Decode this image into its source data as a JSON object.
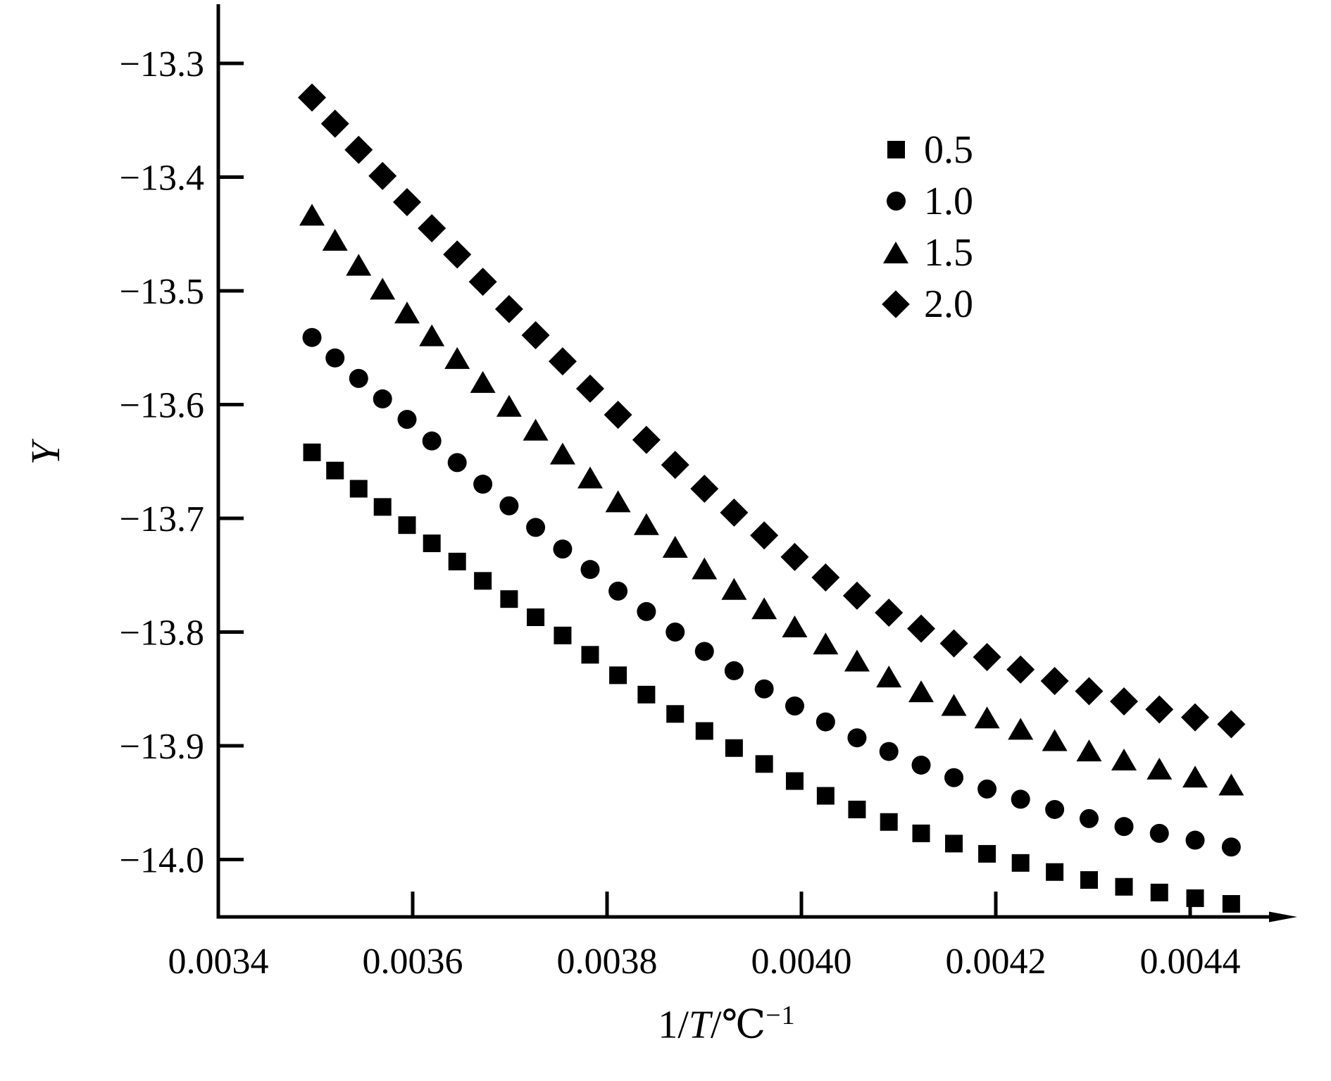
{
  "chart_data": {
    "type": "scatter",
    "title": "",
    "ylabel": "Y",
    "xlabel": {
      "prefix": "1/",
      "variable": "T",
      "unit": "/℃",
      "exponent": "−1"
    },
    "grid": false,
    "legend_position": "upper right",
    "x_axis": {
      "min": 0.0034,
      "max": 0.00451,
      "ticks": [
        0.0034,
        0.0036,
        0.0038,
        0.004,
        0.0042,
        0.0044
      ],
      "tick_labels": [
        "0.0034",
        "0.0036",
        "0.0038",
        "0.0040",
        "0.0042",
        "0.0044"
      ]
    },
    "y_axis": {
      "min": -14.05,
      "max": -13.25,
      "ticks": [
        -13.3,
        -13.4,
        -13.5,
        -13.6,
        -13.7,
        -13.8,
        -13.9,
        -14.0
      ],
      "tick_labels": [
        "−13.3",
        "−13.4",
        "−13.5",
        "−13.6",
        "−13.7",
        "−13.8",
        "−13.9",
        "−14.0"
      ]
    },
    "x": [
      0.0034964,
      0.0035201,
      0.0035444,
      0.003569,
      0.0035942,
      0.0036197,
      0.0036458,
      0.0036722,
      0.0036992,
      0.0037265,
      0.0037543,
      0.0037826,
      0.0038113,
      0.0038405,
      0.0038701,
      0.0039002,
      0.0039307,
      0.0039617,
      0.0039931,
      0.0040249,
      0.0040572,
      0.00409,
      0.0041232,
      0.0041569,
      0.004191,
      0.0042255,
      0.0042606,
      0.004296,
      0.0043319,
      0.0043683,
      0.0044051,
      0.0044423
    ],
    "series": [
      {
        "name": "0.5",
        "marker": "square",
        "y": [
          -13.642,
          -13.658,
          -13.674,
          -13.69,
          -13.706,
          -13.722,
          -13.738,
          -13.755,
          -13.771,
          -13.787,
          -13.803,
          -13.82,
          -13.838,
          -13.855,
          -13.872,
          -13.887,
          -13.902,
          -13.916,
          -13.931,
          -13.944,
          -13.956,
          -13.967,
          -13.977,
          -13.986,
          -13.995,
          -14.003,
          -14.011,
          -14.018,
          -14.024,
          -14.029,
          -14.034,
          -14.039
        ]
      },
      {
        "name": "1.0",
        "marker": "circle",
        "y": [
          -13.541,
          -13.559,
          -13.577,
          -13.595,
          -13.613,
          -13.632,
          -13.651,
          -13.67,
          -13.689,
          -13.708,
          -13.727,
          -13.745,
          -13.764,
          -13.782,
          -13.8,
          -13.817,
          -13.834,
          -13.85,
          -13.865,
          -13.879,
          -13.893,
          -13.905,
          -13.917,
          -13.928,
          -13.938,
          -13.947,
          -13.956,
          -13.964,
          -13.971,
          -13.977,
          -13.983,
          -13.989
        ]
      },
      {
        "name": "1.5",
        "marker": "triangle",
        "y": [
          -13.434,
          -13.456,
          -13.478,
          -13.499,
          -13.52,
          -13.54,
          -13.56,
          -13.581,
          -13.602,
          -13.623,
          -13.644,
          -13.665,
          -13.686,
          -13.706,
          -13.726,
          -13.745,
          -13.763,
          -13.78,
          -13.796,
          -13.811,
          -13.826,
          -13.84,
          -13.853,
          -13.865,
          -13.876,
          -13.886,
          -13.896,
          -13.905,
          -13.913,
          -13.921,
          -13.928,
          -13.935
        ]
      },
      {
        "name": "2.0",
        "marker": "diamond",
        "y": [
          -13.33,
          -13.353,
          -13.376,
          -13.399,
          -13.422,
          -13.445,
          -13.468,
          -13.492,
          -13.516,
          -13.539,
          -13.562,
          -13.586,
          -13.609,
          -13.631,
          -13.653,
          -13.674,
          -13.695,
          -13.715,
          -13.734,
          -13.752,
          -13.768,
          -13.783,
          -13.797,
          -13.81,
          -13.822,
          -13.833,
          -13.843,
          -13.852,
          -13.861,
          -13.868,
          -13.875,
          -13.881
        ]
      }
    ],
    "colors": {
      "ink": "#000000",
      "background": "#ffffff"
    }
  }
}
